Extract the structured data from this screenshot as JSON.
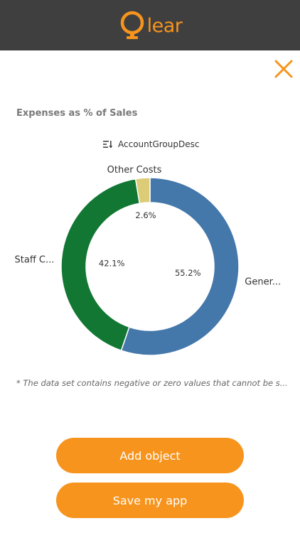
{
  "header": {
    "logo_text": "lear",
    "brand_color": "#f7941d",
    "background": "#3f3f3f"
  },
  "close": {
    "icon": "close-icon"
  },
  "chart_data": {
    "type": "pie",
    "title": "Expenses as % of Sales",
    "donut": true,
    "legend_title": "AccountGroupDesc",
    "legend_placement": "top",
    "slices": [
      {
        "label": "Gener...",
        "value": 55.2,
        "display": "55.2%",
        "color": "#4477aa"
      },
      {
        "label": "Staff C...",
        "value": 42.1,
        "display": "42.1%",
        "color": "#117733"
      },
      {
        "label": "Other Costs",
        "value": 2.6,
        "display": "2.6%",
        "color": "#ddcc77"
      }
    ]
  },
  "footnote": "* The data set contains negative or zero values that cannot be s...",
  "buttons": {
    "add_object": "Add object",
    "save_app": "Save my app"
  }
}
